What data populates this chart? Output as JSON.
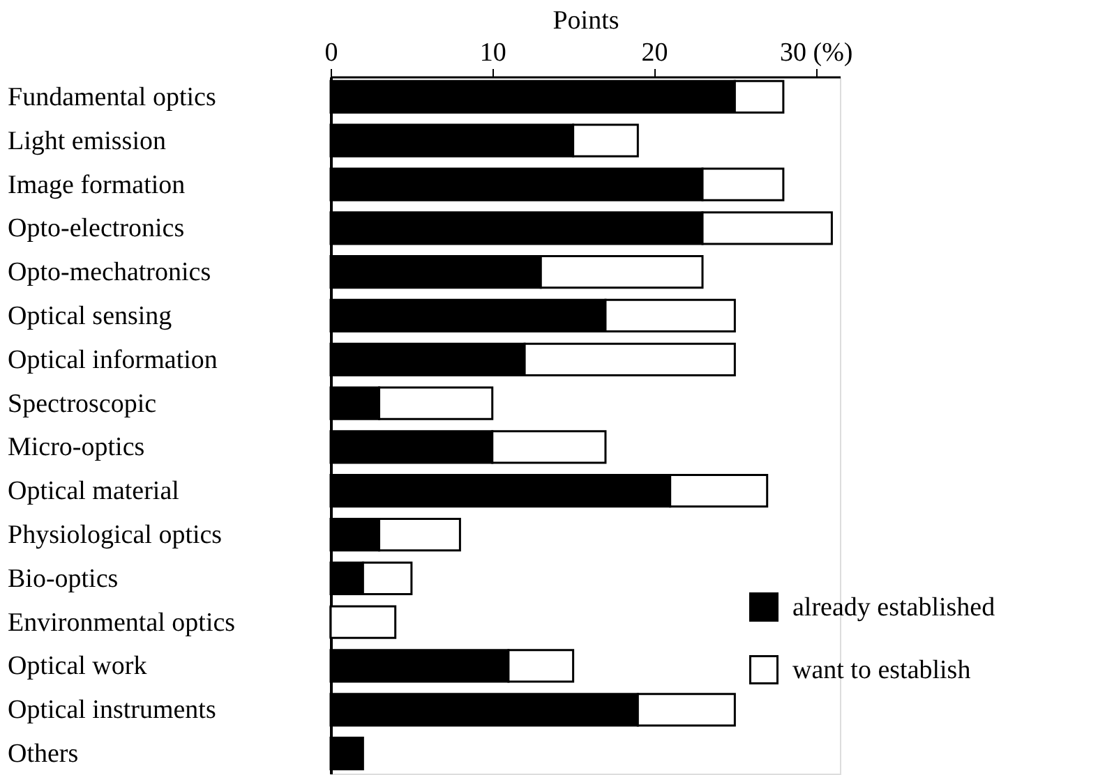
{
  "chart_data": {
    "type": "bar",
    "orientation": "horizontal",
    "stacked": true,
    "xlabel": "Points",
    "categories": [
      "Fundamental optics",
      "Light emission",
      "Image formation",
      "Opto-electronics",
      "Opto-mechatronics",
      "Optical sensing",
      "Optical information",
      "Spectroscopic",
      "Micro-optics",
      "Optical material",
      "Physiological optics",
      "Bio-optics",
      "Environmental optics",
      "Optical work",
      "Optical instruments",
      "Others"
    ],
    "series": [
      {
        "name": "already established",
        "color": "#000000",
        "values": [
          25,
          15,
          23,
          23,
          13,
          17,
          12,
          3,
          10,
          21,
          3,
          2,
          0,
          11,
          19,
          2
        ]
      },
      {
        "name": "want to establish",
        "color": "#ffffff",
        "values": [
          3,
          4,
          5,
          8,
          10,
          8,
          13,
          7,
          7,
          6,
          5,
          3,
          4,
          4,
          6,
          null
        ]
      }
    ],
    "xlim": [
      0,
      31.5
    ],
    "xticks": [
      0,
      10,
      20,
      {
        "value": 30,
        "label": "30 (%)"
      }
    ],
    "grid": false,
    "legend": "right"
  }
}
